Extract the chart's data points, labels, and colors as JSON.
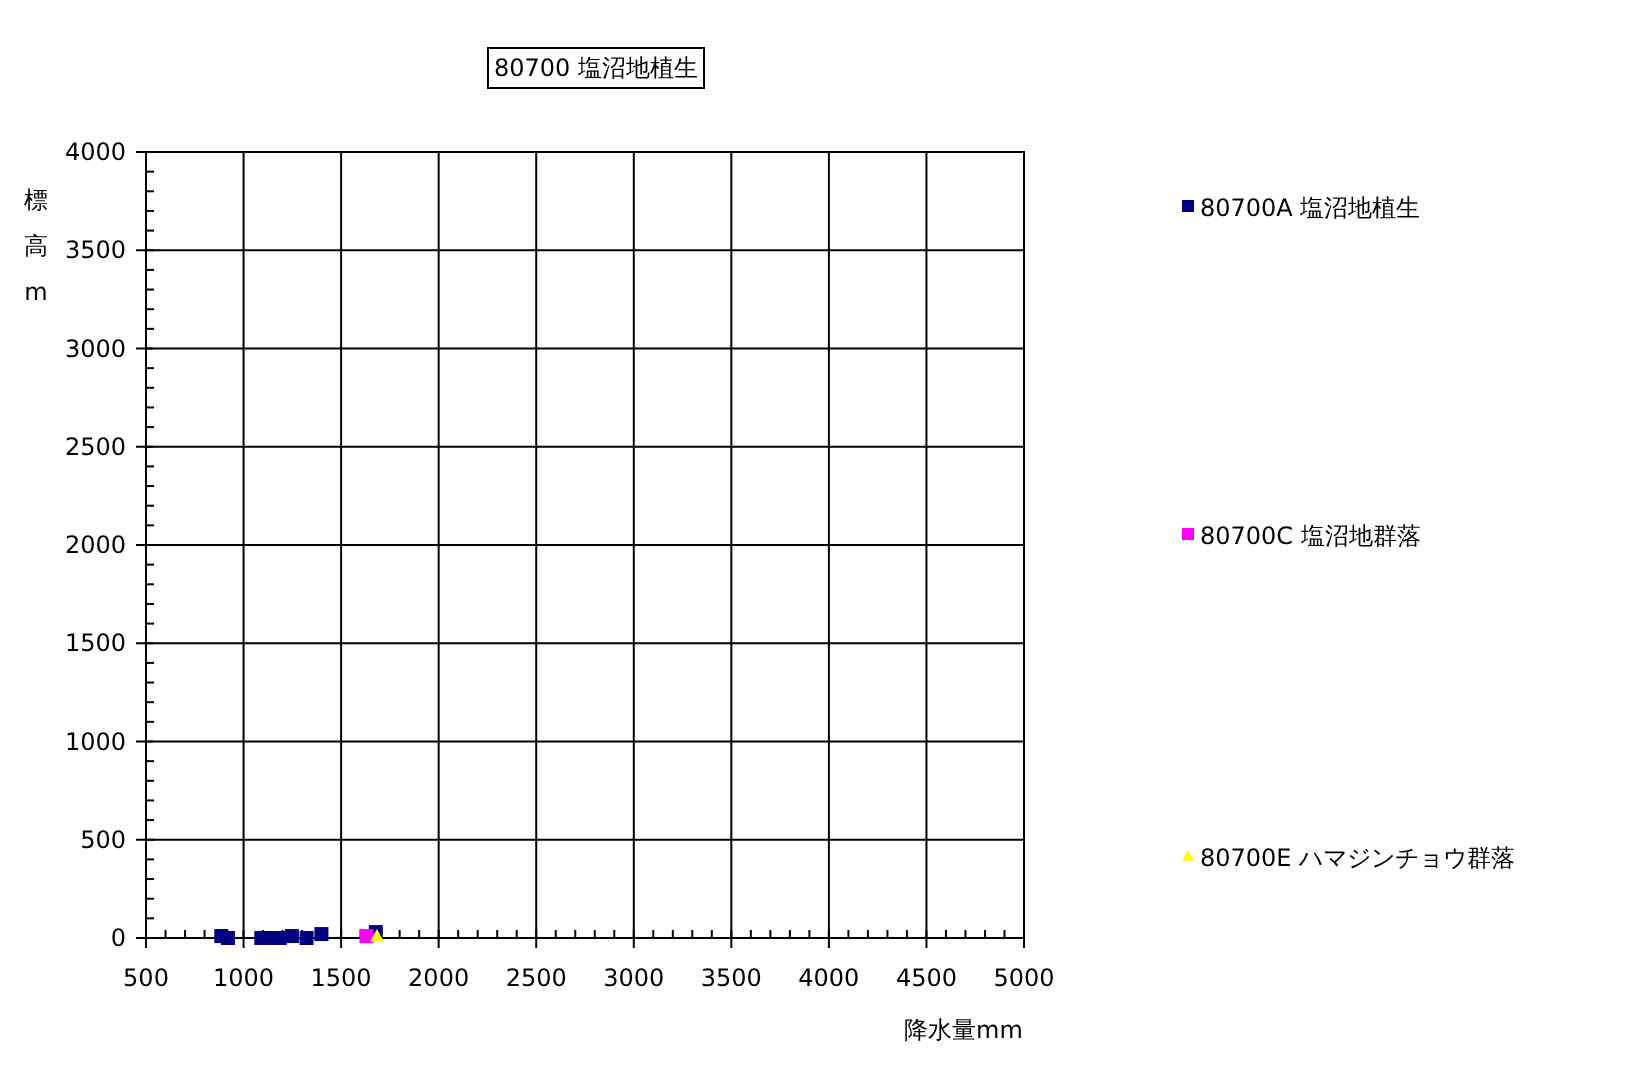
{
  "chart_data": {
    "type": "scatter",
    "title": "80700 塩沼地植生",
    "xlabel": "降水量mm",
    "ylabel": "標高m",
    "xlim": [
      500,
      5000
    ],
    "xticks": [
      500,
      1000,
      1500,
      2000,
      2500,
      3000,
      3500,
      4000,
      4500,
      5000
    ],
    "ylim": [
      0,
      4000
    ],
    "yticks": [
      0,
      500,
      1000,
      1500,
      2000,
      2500,
      3000,
      3500,
      4000
    ],
    "grid": true,
    "legend": "right",
    "series": [
      {
        "name": "80700A 塩沼地植生",
        "color": "#000080",
        "marker": "square",
        "x": [
          886,
          920,
          1091,
          1125,
          1186,
          1248,
          1323,
          1399,
          1678
        ],
        "values": [
          10,
          0,
          0,
          0,
          0,
          10,
          0,
          20,
          30
        ]
      },
      {
        "name": "80700C 塩沼地群落",
        "color": "#ff00ff",
        "marker": "square",
        "x": [
          1630
        ],
        "values": [
          10
        ]
      },
      {
        "name": "80700E ハマジンチョウ群落",
        "color": "#ffff00",
        "marker": "triangle",
        "x": [
          1684
        ],
        "values": [
          10
        ]
      }
    ]
  }
}
